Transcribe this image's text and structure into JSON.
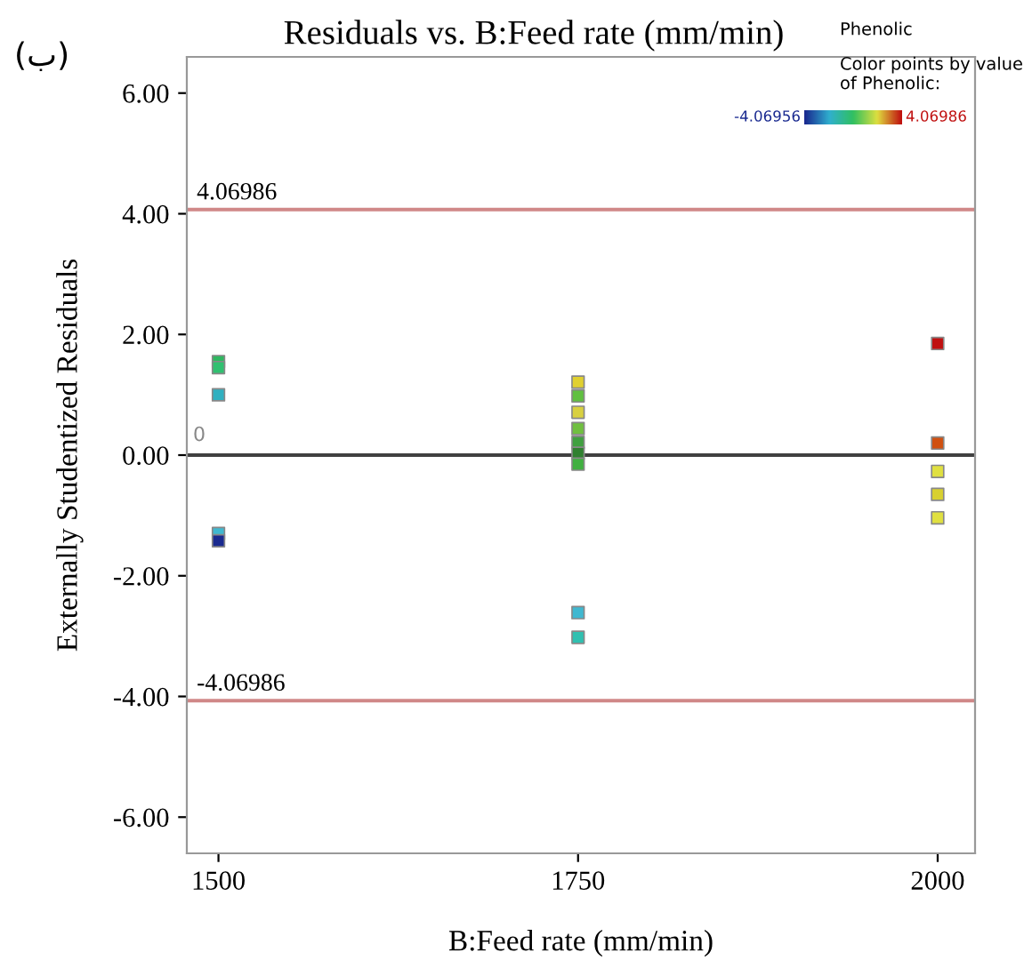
{
  "chart_data": {
    "type": "scatter",
    "title": "Residuals vs. B:Feed rate (mm/min)",
    "xlabel": "B:Feed rate (mm/min)",
    "ylabel": "Externally Studentized Residuals",
    "x": [
      1500,
      1500,
      1500,
      1500,
      1500,
      1750,
      1750,
      1750,
      1750,
      1750,
      1750,
      1750,
      1750,
      1750,
      2000,
      2000,
      2000,
      2000,
      2000
    ],
    "values": [
      1.55,
      1.45,
      1.0,
      -1.3,
      -1.42,
      1.21,
      0.98,
      0.71,
      0.44,
      0.21,
      0.03,
      -0.15,
      -2.61,
      -3.02,
      1.85,
      0.2,
      -0.27,
      -0.65,
      -1.04
    ],
    "colors": [
      "#2fb860",
      "#30c070",
      "#30b0c0",
      "#40b8d0",
      "#1a2a90",
      "#e0d030",
      "#60c040",
      "#d8d040",
      "#70c040",
      "#40a040",
      "#308030",
      "#40b040",
      "#40b8d0",
      "#30c0b0",
      "#c01010",
      "#d05010",
      "#e0e040",
      "#d8d030",
      "#e0e040"
    ],
    "marker": "square",
    "xlim": [
      1478,
      2026
    ],
    "xticks": [
      1500,
      1750,
      2000
    ],
    "ylim": [
      -6.6,
      6.6
    ],
    "yticks": [
      {
        "value": -6,
        "label": "-6.00"
      },
      {
        "value": -4,
        "label": "-4.00"
      },
      {
        "value": -2,
        "label": "-2.00"
      },
      {
        "value": 0,
        "label": "0.00"
      },
      {
        "value": 2,
        "label": "2.00"
      },
      {
        "value": 4,
        "label": "4.00"
      },
      {
        "value": 6,
        "label": "6.00"
      }
    ],
    "grid": false,
    "ref_lines": [
      {
        "axis": "y",
        "value": 4.06986,
        "label": "4.06986",
        "color": "#d08888"
      },
      {
        "axis": "y",
        "value": -4.06986,
        "label": "-4.06986",
        "color": "#d08888"
      },
      {
        "axis": "y",
        "value": 0,
        "label": null,
        "color": "#404040"
      }
    ],
    "annotations": [
      "(ب)",
      "Phenolic",
      "0",
      "Color points by value of Phenolic:",
      "-4.06956",
      "4.06986"
    ]
  }
}
